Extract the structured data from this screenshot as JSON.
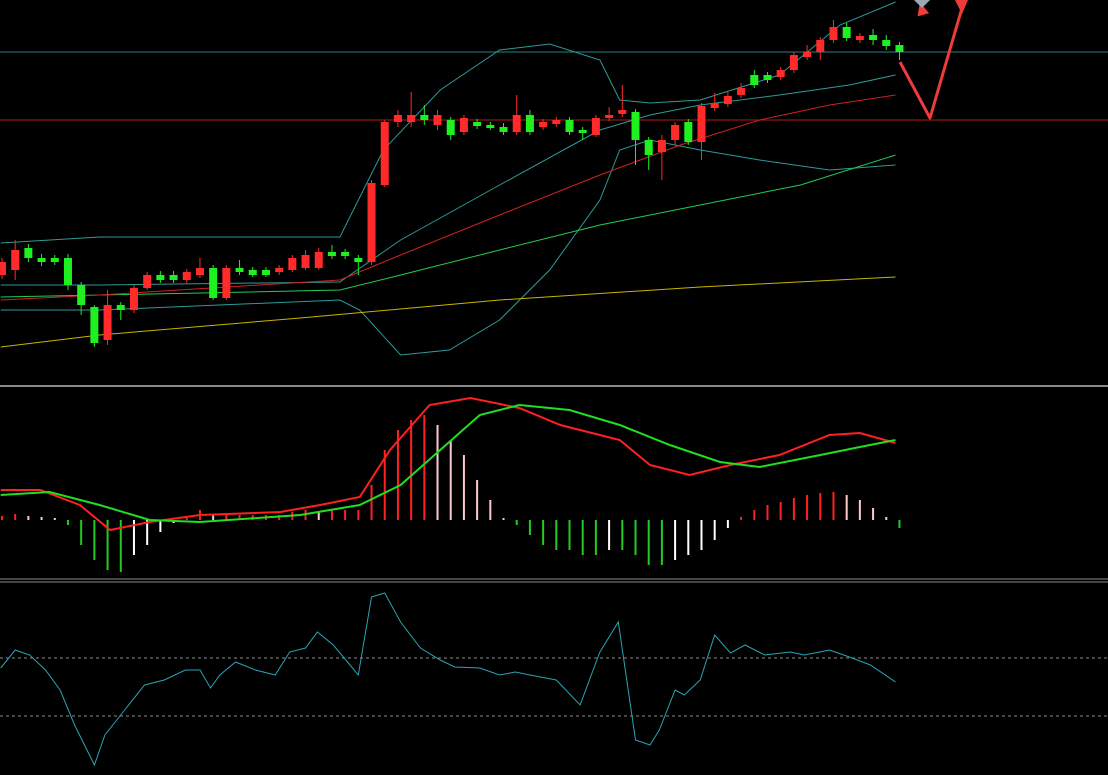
{
  "chart_data": [
    {
      "type": "candlestick",
      "xlim": [
        -0.15,
        83.8
      ],
      "ylim": [
        0,
        385
      ],
      "up_color": "#ff2a2a",
      "down_color": "#1ff01f",
      "open": [
        110,
        115,
        137,
        127,
        127,
        127,
        100,
        78,
        45,
        80,
        75,
        97,
        110,
        110,
        105,
        110,
        117,
        87,
        117,
        115,
        115,
        113,
        115,
        117,
        117,
        133,
        133,
        127,
        123,
        200,
        263,
        263,
        270,
        260,
        265,
        253,
        263,
        260,
        258,
        253,
        270,
        258,
        261,
        265,
        255,
        250,
        267,
        271,
        273,
        245,
        233,
        245,
        263,
        243,
        277,
        281,
        290,
        310,
        310,
        308,
        315,
        328,
        333,
        345,
        358,
        345,
        350,
        345,
        340
      ],
      "high": [
        127,
        145,
        141,
        131,
        130,
        131,
        103,
        80,
        95,
        83,
        100,
        113,
        114,
        114,
        116,
        127,
        120,
        120,
        125,
        118,
        118,
        120,
        130,
        135,
        137,
        140,
        136,
        130,
        205,
        265,
        275,
        293,
        280,
        275,
        268,
        270,
        266,
        263,
        262,
        290,
        275,
        266,
        268,
        268,
        258,
        270,
        278,
        300,
        276,
        248,
        250,
        263,
        266,
        282,
        292,
        293,
        302,
        315,
        313,
        318,
        333,
        340,
        348,
        365,
        362,
        352,
        356,
        350,
        343
      ],
      "low": [
        106,
        105,
        123,
        119,
        120,
        95,
        70,
        38,
        40,
        65,
        72,
        95,
        102,
        102,
        102,
        107,
        85,
        85,
        110,
        108,
        108,
        110,
        113,
        115,
        115,
        126,
        126,
        110,
        120,
        198,
        258,
        258,
        260,
        255,
        245,
        250,
        256,
        255,
        250,
        250,
        250,
        255,
        258,
        250,
        245,
        248,
        264,
        268,
        220,
        215,
        205,
        240,
        240,
        225,
        274,
        278,
        287,
        297,
        302,
        305,
        312,
        325,
        325,
        342,
        344,
        342,
        340,
        335,
        325
      ],
      "close": [
        123,
        135,
        127,
        123,
        123,
        100,
        80,
        42,
        80,
        75,
        97,
        110,
        105,
        105,
        113,
        117,
        87,
        117,
        113,
        110,
        110,
        117,
        127,
        130,
        133,
        129,
        129,
        123,
        202,
        263,
        270,
        270,
        265,
        270,
        250,
        267,
        259,
        257,
        253,
        270,
        253,
        263,
        265,
        253,
        252,
        267,
        270,
        275,
        245,
        230,
        245,
        260,
        243,
        279,
        282,
        289,
        297,
        300,
        305,
        315,
        330,
        333,
        345,
        358,
        347,
        349,
        345,
        339,
        333
      ],
      "lines": [
        {
          "color": "#2f9a9a",
          "x": [
            -0.1,
            7.4,
            25.6,
            28.9,
            33.2,
            37.7,
            41.5,
            45.3,
            46.8,
            49.1,
            52.9,
            58.9,
            63.5,
            67.7
          ],
          "values": [
            142,
            148,
            148,
            235,
            295,
            335,
            341,
            325,
            285,
            282,
            285,
            310,
            360,
            383
          ]
        },
        {
          "color": "#2f9a9a",
          "x": [
            -0.1,
            7.4,
            25.6,
            30.2,
            37.7,
            45.3,
            49.1,
            52.9,
            58.9,
            64.2,
            67.7
          ],
          "values": [
            100,
            100,
            103,
            145,
            200,
            255,
            270,
            280,
            290,
            300,
            310
          ]
        },
        {
          "color": "#2f9a9a",
          "x": [
            -0.1,
            7.4,
            25.6,
            27.1,
            30.2,
            33.9,
            37.7,
            41.5,
            45.3,
            46.8,
            49.1,
            52.9,
            57.4,
            62.7,
            67.7
          ],
          "values": [
            75,
            75,
            85,
            75,
            30,
            35,
            65,
            115,
            185,
            235,
            245,
            235,
            225,
            215,
            220
          ]
        },
        {
          "color": "#22cc55",
          "x": [
            -0.1,
            7.4,
            15,
            25.6,
            30.2,
            37.7,
            45.3,
            52.9,
            60.5,
            67.7
          ],
          "values": [
            88,
            90,
            92,
            95,
            110,
            135,
            160,
            180,
            200,
            230
          ]
        },
        {
          "color": "#cc2222",
          "x": [
            -0.1,
            7.4,
            25.6,
            30.2,
            37.7,
            45.3,
            51.4,
            57.4,
            62.7,
            67.7
          ],
          "values": [
            85,
            90,
            105,
            130,
            170,
            210,
            240,
            265,
            280,
            290
          ]
        },
        {
          "color": "#c8b400",
          "x": [
            -0.1,
            7.4,
            22.6,
            37.7,
            52.9,
            67.7
          ],
          "values": [
            38,
            50,
            67,
            85,
            98,
            108
          ]
        }
      ],
      "levels": [
        {
          "value": 333,
          "color": "#2a7f86",
          "style": "solid"
        },
        {
          "value": 265,
          "color": "#b01818",
          "style": "solid"
        }
      ]
    },
    {
      "type": "macd",
      "xlim": [
        -0.15,
        83.8
      ],
      "ylim": [
        -58,
        132
      ],
      "up_color": "#ff2020",
      "up_fade_color": "#ffc8d0",
      "down_color": "#22cc22",
      "down_fade_color": "#ffffff",
      "values": [
        4,
        6,
        4,
        3,
        2,
        -5,
        -25,
        -40,
        -50,
        -52,
        -35,
        -25,
        -12,
        -3,
        2,
        10,
        5,
        5,
        5,
        5,
        5,
        5,
        8,
        10,
        8,
        10,
        10,
        10,
        35,
        70,
        90,
        100,
        105,
        95,
        80,
        65,
        40,
        20,
        2,
        -5,
        -15,
        -25,
        -30,
        -30,
        -35,
        -35,
        -30,
        -30,
        -35,
        -45,
        -45,
        -40,
        -35,
        -30,
        -20,
        -8,
        3,
        10,
        15,
        18,
        22,
        25,
        27,
        28,
        25,
        20,
        12,
        3,
        -8
      ],
      "lines": [
        {
          "color": "#ff2020",
          "x": [
            -0.1,
            2.9,
            5.9,
            8.2,
            11.2,
            15,
            21.1,
            24.1,
            27.1,
            29.4,
            32.4,
            35.5,
            39.2,
            42.3,
            46.8,
            49.1,
            52.1,
            55.2,
            58.9,
            62.7,
            65,
            67.7
          ],
          "values": [
            30,
            30,
            15,
            -10,
            -2,
            5,
            8,
            15,
            23,
            70,
            115,
            122,
            112,
            95,
            80,
            55,
            45,
            55,
            65,
            85,
            87,
            77
          ]
        },
        {
          "color": "#22dd22",
          "x": [
            -0.1,
            3.6,
            7.4,
            11.2,
            15,
            22.6,
            27.1,
            30.2,
            33.2,
            36.2,
            39.2,
            43,
            46.8,
            50.6,
            54.4,
            57.4,
            62,
            65,
            67.7
          ],
          "values": [
            25,
            28,
            15,
            0,
            -2,
            5,
            15,
            35,
            70,
            105,
            115,
            110,
            95,
            75,
            58,
            53,
            65,
            73,
            80
          ]
        }
      ]
    },
    {
      "type": "line",
      "xlim": [
        -0.15,
        83.8
      ],
      "ylim": [
        0,
        192
      ],
      "lines": [
        {
          "color": "#2aa4b4",
          "x": [
            -0.1,
            1,
            2.1,
            3.3,
            4.4,
            5.5,
            7,
            7.8,
            9.3,
            10.8,
            12.3,
            13.9,
            15,
            15.8,
            16.5,
            17.7,
            19.2,
            20.7,
            21.8,
            23,
            23.9,
            25.1,
            27,
            28,
            29,
            30.2,
            31.7,
            33.2,
            34.3,
            36.2,
            37.7,
            38.9,
            40,
            42,
            43.8,
            45.3,
            46.7,
            48,
            49.1,
            49.8,
            51,
            51.7,
            52.9,
            54,
            55.2,
            56.3,
            57.8,
            59.7,
            60.8,
            62.7,
            64.2,
            65.8,
            67.7
          ],
          "values": [
            107,
            125,
            120,
            105,
            85,
            50,
            10,
            40,
            65,
            90,
            95,
            105,
            105,
            87,
            100,
            113,
            105,
            100,
            123,
            127,
            143,
            130,
            100,
            178,
            182,
            153,
            127,
            115,
            108,
            107,
            100,
            103,
            100,
            95,
            70,
            123,
            153,
            35,
            30,
            45,
            85,
            80,
            95,
            140,
            122,
            130,
            120,
            123,
            120,
            125,
            118,
            110,
            93
          ]
        }
      ],
      "levels": [
        {
          "value": 117,
          "color": "#8a8a8a",
          "style": "dashed"
        },
        {
          "value": 59,
          "color": "#8a8a8a",
          "style": "dashed"
        }
      ]
    }
  ]
}
